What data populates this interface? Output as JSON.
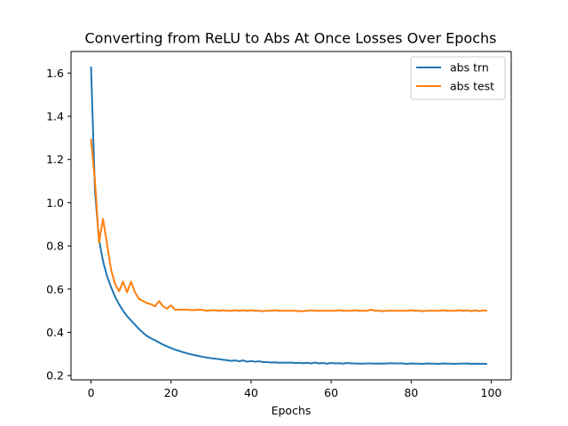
{
  "chart_data": {
    "type": "line",
    "title": "Converting from ReLU to Abs At Once Losses Over Epochs",
    "xlabel": "Epochs",
    "ylabel": "",
    "xlim": [
      -5,
      105
    ],
    "ylim": [
      0.18,
      1.7
    ],
    "xticks": [
      0,
      20,
      40,
      60,
      80,
      100
    ],
    "yticks": [
      0.2,
      0.4,
      0.6,
      0.8,
      1.0,
      1.2,
      1.4,
      1.6
    ],
    "ytick_labels": [
      "0.2",
      "0.4",
      "0.6",
      "0.8",
      "1.0",
      "1.2",
      "1.4",
      "1.6"
    ],
    "grid": false,
    "legend_position": "top-right",
    "series": [
      {
        "name": "abs trn",
        "color": "#1f77b4",
        "x": [
          0,
          1,
          2,
          3,
          4,
          5,
          6,
          7,
          8,
          9,
          10,
          11,
          12,
          13,
          14,
          15,
          16,
          17,
          18,
          19,
          20,
          21,
          22,
          23,
          24,
          25,
          26,
          27,
          28,
          29,
          30,
          31,
          32,
          33,
          34,
          35,
          36,
          37,
          38,
          39,
          40,
          41,
          42,
          43,
          44,
          45,
          46,
          47,
          48,
          49,
          50,
          51,
          52,
          53,
          54,
          55,
          56,
          57,
          58,
          59,
          60,
          61,
          62,
          63,
          64,
          65,
          66,
          67,
          68,
          69,
          70,
          71,
          72,
          73,
          74,
          75,
          76,
          77,
          78,
          79,
          80,
          81,
          82,
          83,
          84,
          85,
          86,
          87,
          88,
          89,
          90,
          91,
          92,
          93,
          94,
          95,
          96,
          97,
          98,
          99
        ],
        "y": [
          1.63,
          1.05,
          0.83,
          0.73,
          0.66,
          0.61,
          0.565,
          0.53,
          0.5,
          0.475,
          0.455,
          0.435,
          0.415,
          0.398,
          0.383,
          0.372,
          0.363,
          0.353,
          0.343,
          0.335,
          0.327,
          0.32,
          0.314,
          0.308,
          0.303,
          0.298,
          0.294,
          0.29,
          0.286,
          0.283,
          0.28,
          0.278,
          0.276,
          0.273,
          0.271,
          0.268,
          0.27,
          0.266,
          0.27,
          0.264,
          0.267,
          0.264,
          0.266,
          0.262,
          0.262,
          0.26,
          0.261,
          0.259,
          0.26,
          0.259,
          0.26,
          0.258,
          0.259,
          0.257,
          0.259,
          0.256,
          0.26,
          0.256,
          0.258,
          0.255,
          0.258,
          0.256,
          0.257,
          0.255,
          0.258,
          0.256,
          0.256,
          0.255,
          0.255,
          0.256,
          0.256,
          0.255,
          0.256,
          0.255,
          0.256,
          0.257,
          0.256,
          0.256,
          0.256,
          0.254,
          0.256,
          0.255,
          0.255,
          0.254,
          0.256,
          0.255,
          0.255,
          0.254,
          0.256,
          0.255,
          0.255,
          0.254,
          0.255,
          0.255,
          0.256,
          0.254,
          0.255,
          0.254,
          0.255,
          0.253
        ]
      },
      {
        "name": "abs test",
        "color": "#ff7f0e",
        "x": [
          0,
          1,
          2,
          3,
          4,
          5,
          6,
          7,
          8,
          9,
          10,
          11,
          12,
          13,
          14,
          15,
          16,
          17,
          18,
          19,
          20,
          21,
          22,
          23,
          24,
          25,
          26,
          27,
          28,
          29,
          30,
          31,
          32,
          33,
          34,
          35,
          36,
          37,
          38,
          39,
          40,
          41,
          42,
          43,
          44,
          45,
          46,
          47,
          48,
          49,
          50,
          51,
          52,
          53,
          54,
          55,
          56,
          57,
          58,
          59,
          60,
          61,
          62,
          63,
          64,
          65,
          66,
          67,
          68,
          69,
          70,
          71,
          72,
          73,
          74,
          75,
          76,
          77,
          78,
          79,
          80,
          81,
          82,
          83,
          84,
          85,
          86,
          87,
          88,
          89,
          90,
          91,
          92,
          93,
          94,
          95,
          96,
          97,
          98,
          99
        ],
        "y": [
          1.295,
          1.1,
          0.815,
          0.925,
          0.81,
          0.69,
          0.625,
          0.59,
          0.635,
          0.585,
          0.635,
          0.585,
          0.555,
          0.545,
          0.535,
          0.53,
          0.52,
          0.545,
          0.52,
          0.51,
          0.525,
          0.505,
          0.505,
          0.505,
          0.505,
          0.503,
          0.503,
          0.505,
          0.503,
          0.5,
          0.502,
          0.502,
          0.5,
          0.502,
          0.5,
          0.5,
          0.502,
          0.5,
          0.502,
          0.5,
          0.502,
          0.5,
          0.5,
          0.498,
          0.5,
          0.5,
          0.502,
          0.5,
          0.5,
          0.5,
          0.5,
          0.5,
          0.498,
          0.498,
          0.5,
          0.502,
          0.5,
          0.5,
          0.5,
          0.5,
          0.5,
          0.5,
          0.502,
          0.5,
          0.5,
          0.5,
          0.502,
          0.5,
          0.5,
          0.5,
          0.505,
          0.5,
          0.5,
          0.498,
          0.5,
          0.5,
          0.5,
          0.5,
          0.5,
          0.5,
          0.502,
          0.5,
          0.5,
          0.498,
          0.5,
          0.5,
          0.5,
          0.5,
          0.502,
          0.5,
          0.5,
          0.5,
          0.502,
          0.5,
          0.502,
          0.498,
          0.502,
          0.498,
          0.502,
          0.5
        ]
      }
    ]
  }
}
